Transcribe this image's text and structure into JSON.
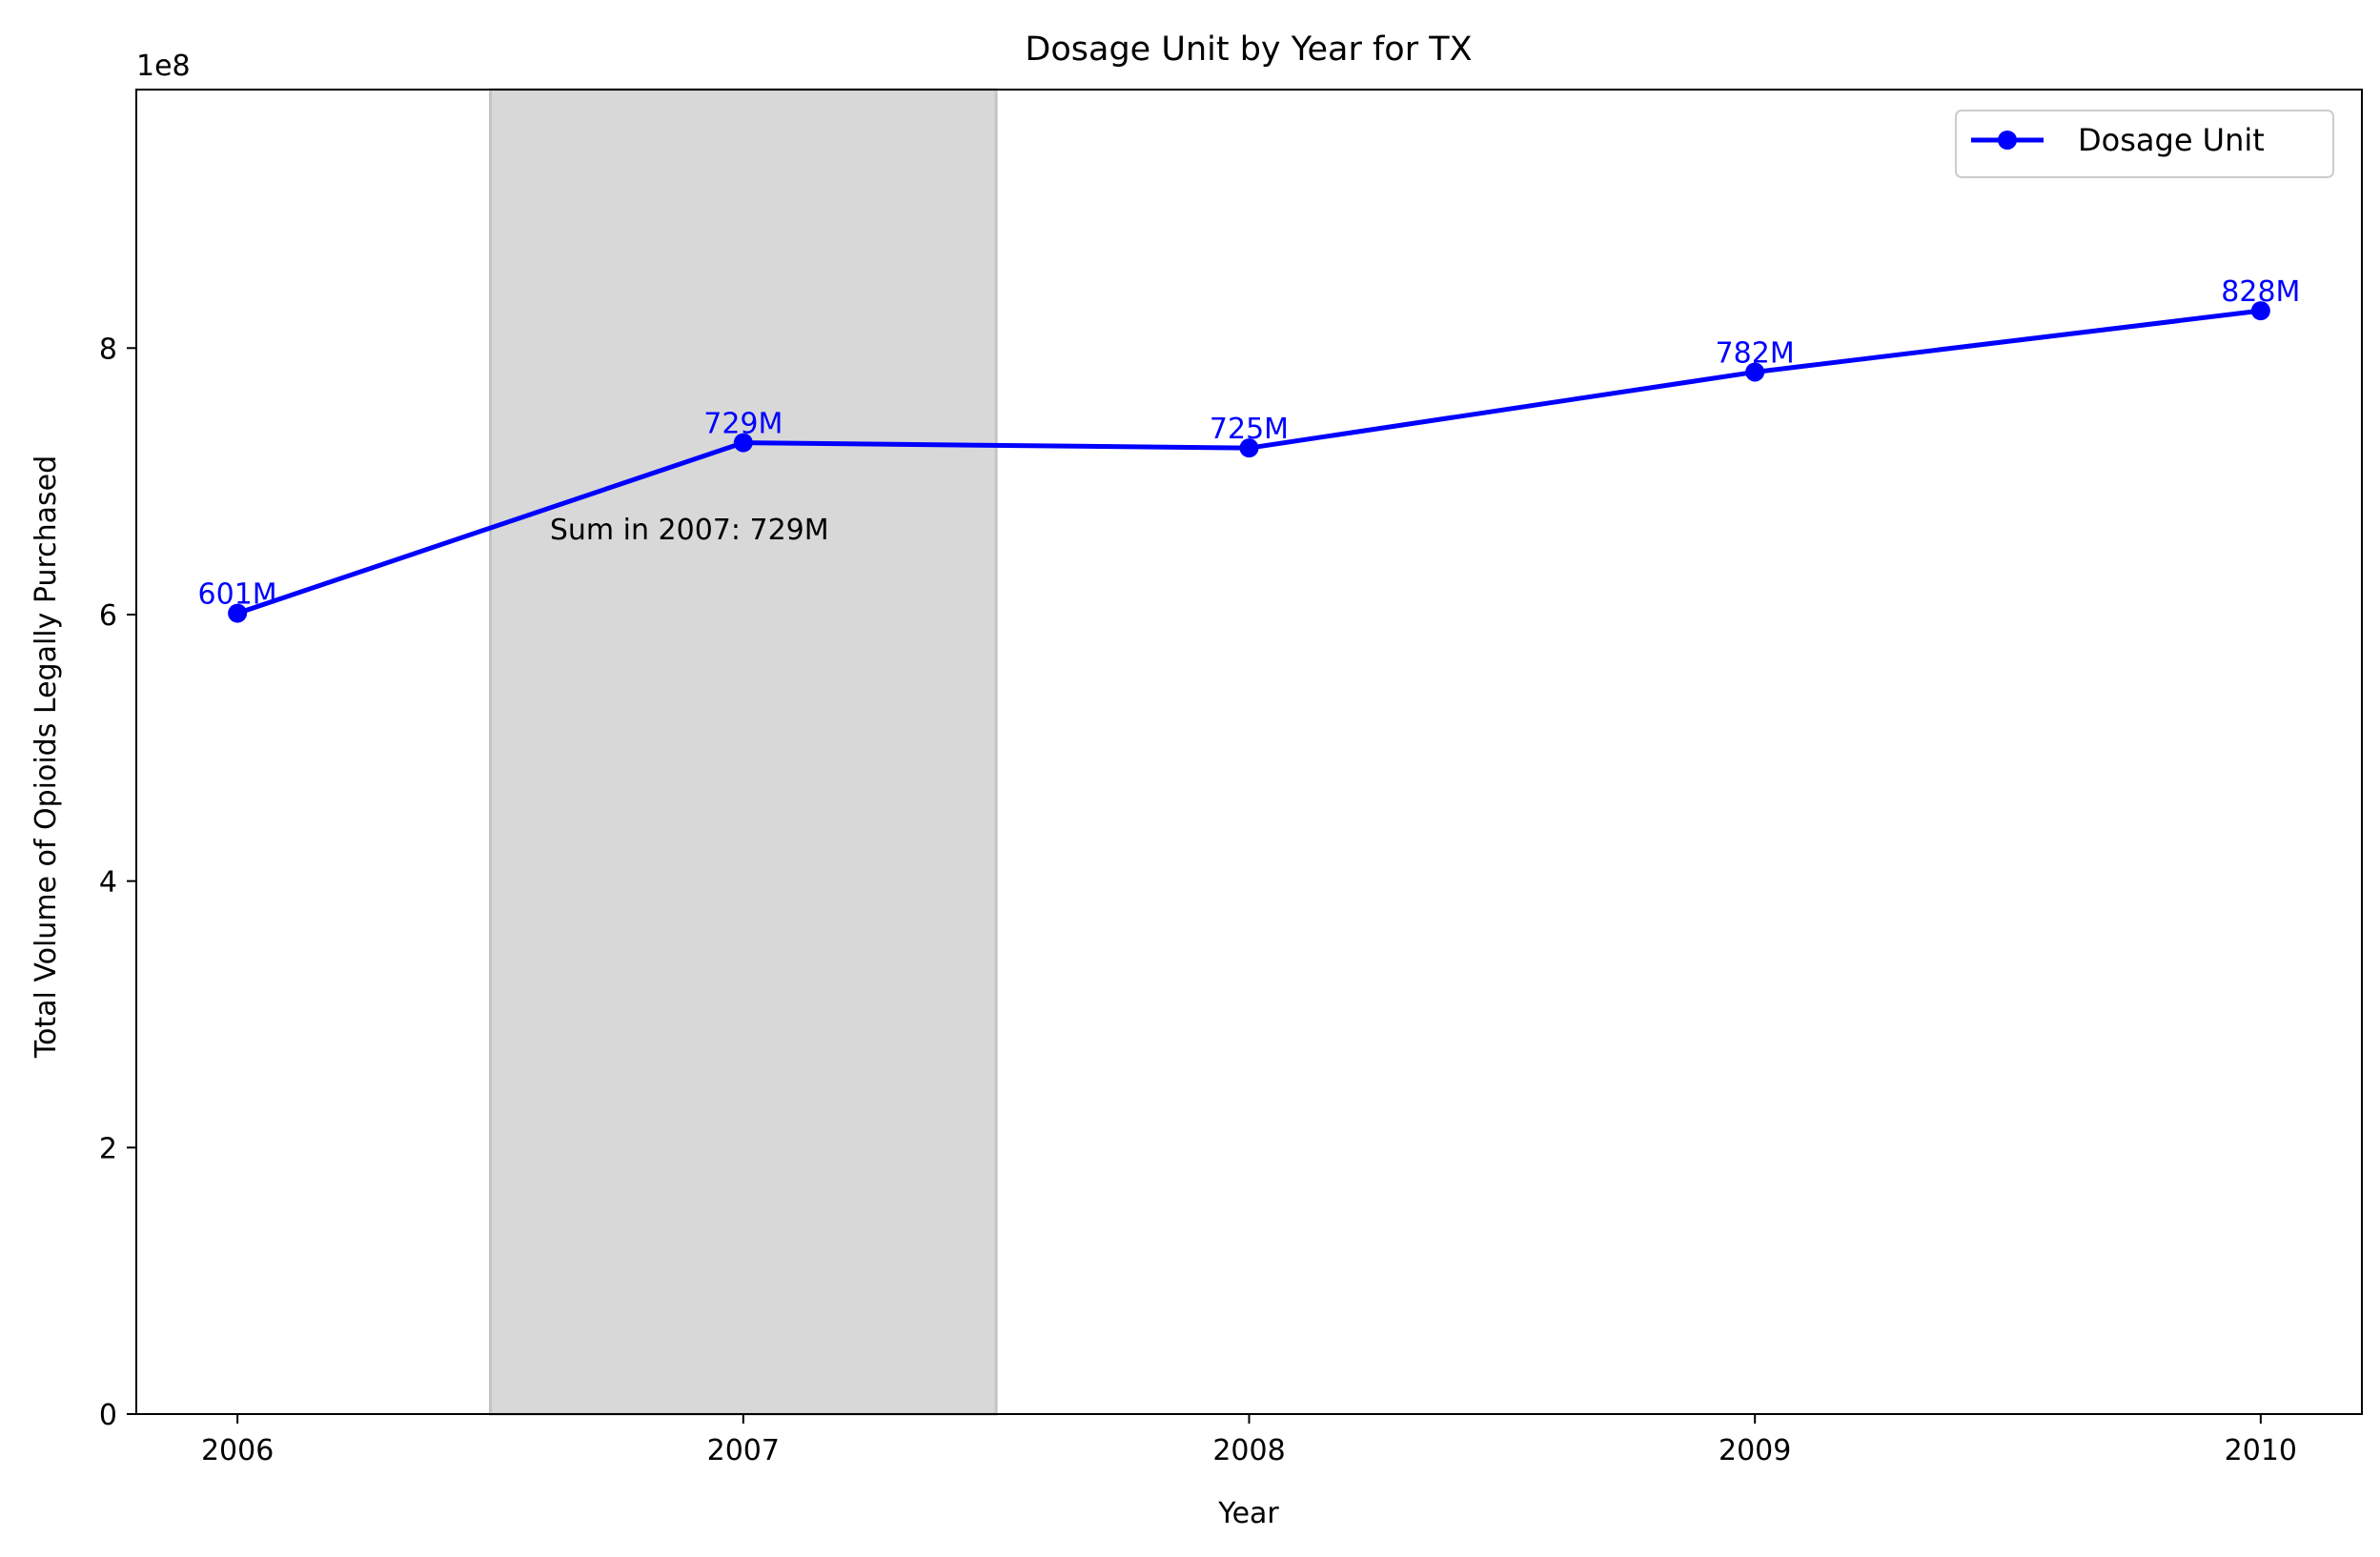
{
  "chart_data": {
    "type": "line",
    "title": "Dosage Unit by Year for TX",
    "xlabel": "Year",
    "ylabel": "Total Volume of Opioids Legally Purchased",
    "y_offset_label": "1e8",
    "x": [
      2006,
      2007,
      2008,
      2009,
      2010
    ],
    "x_tick_labels": [
      "2006",
      "2007",
      "2008",
      "2009",
      "2010"
    ],
    "xlim": [
      2005.8,
      2010.2
    ],
    "ylim": [
      0,
      994000000
    ],
    "y_ticks": [
      0,
      200000000,
      400000000,
      600000000,
      800000000
    ],
    "y_tick_labels": [
      "0",
      "2",
      "4",
      "6",
      "8"
    ],
    "grid": false,
    "legend_position": "top-right",
    "series": [
      {
        "name": "Dosage Unit",
        "color": "#0000ff",
        "values": [
          601000000,
          729000000,
          725000000,
          782000000,
          828000000
        ],
        "point_labels": [
          "601M",
          "729M",
          "725M",
          "782M",
          "828M"
        ]
      }
    ],
    "highlight_band": {
      "x_start": 2006.5,
      "x_end": 2007.5,
      "color": "#d8d8d8"
    },
    "annotation": {
      "text": "Sum in 2007: 729M",
      "x": 2007,
      "y": 660000000
    }
  }
}
